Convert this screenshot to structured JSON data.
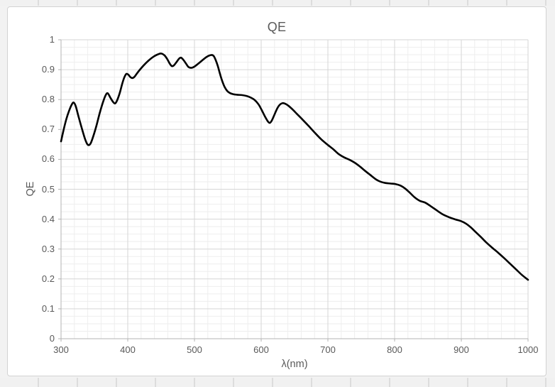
{
  "window": {
    "background_color": "#f2f2f2",
    "chart_background_color": "#ffffff",
    "chart_border_color": "#d2d2d2"
  },
  "chart_data": {
    "type": "line",
    "title": "QE",
    "xlabel": "λ(nm)",
    "ylabel": "QE",
    "xlim": [
      300,
      1000
    ],
    "ylim": [
      0,
      1
    ],
    "x_major_step": 100,
    "x_minor_step": 20,
    "y_major_step": 0.1,
    "y_minor_step": 0.025,
    "x_ticks": [
      "300",
      "400",
      "500",
      "600",
      "700",
      "800",
      "900",
      "1000"
    ],
    "y_ticks": [
      "0",
      "0.1",
      "0.2",
      "0.3",
      "0.4",
      "0.5",
      "0.6",
      "0.7",
      "0.8",
      "0.9",
      "1"
    ],
    "grid": "major-and-minor",
    "legend": "none",
    "colors": {
      "line": "#000000",
      "major_grid": "#d6d6d6",
      "minor_grid": "#eeeeee",
      "axis": "#b3b3b3",
      "text": "#595959"
    },
    "series": [
      {
        "name": "QE",
        "points": [
          [
            300,
            0.66
          ],
          [
            304,
            0.7
          ],
          [
            308,
            0.735
          ],
          [
            312,
            0.762
          ],
          [
            316,
            0.783
          ],
          [
            319,
            0.79
          ],
          [
            322,
            0.778
          ],
          [
            326,
            0.745
          ],
          [
            331,
            0.705
          ],
          [
            336,
            0.668
          ],
          [
            340,
            0.649
          ],
          [
            344,
            0.652
          ],
          [
            348,
            0.675
          ],
          [
            353,
            0.712
          ],
          [
            358,
            0.755
          ],
          [
            363,
            0.792
          ],
          [
            367,
            0.815
          ],
          [
            370,
            0.821
          ],
          [
            374,
            0.806
          ],
          [
            378,
            0.792
          ],
          [
            381,
            0.787
          ],
          [
            384,
            0.797
          ],
          [
            388,
            0.822
          ],
          [
            392,
            0.855
          ],
          [
            395,
            0.875
          ],
          [
            398,
            0.886
          ],
          [
            401,
            0.883
          ],
          [
            404,
            0.875
          ],
          [
            407,
            0.872
          ],
          [
            410,
            0.876
          ],
          [
            414,
            0.888
          ],
          [
            419,
            0.902
          ],
          [
            425,
            0.917
          ],
          [
            432,
            0.932
          ],
          [
            439,
            0.944
          ],
          [
            445,
            0.951
          ],
          [
            450,
            0.954
          ],
          [
            455,
            0.948
          ],
          [
            459,
            0.936
          ],
          [
            463,
            0.92
          ],
          [
            466,
            0.912
          ],
          [
            469,
            0.914
          ],
          [
            473,
            0.925
          ],
          [
            477,
            0.937
          ],
          [
            480,
            0.94
          ],
          [
            484,
            0.931
          ],
          [
            488,
            0.918
          ],
          [
            491,
            0.909
          ],
          [
            495,
            0.906
          ],
          [
            499,
            0.909
          ],
          [
            504,
            0.917
          ],
          [
            510,
            0.928
          ],
          [
            516,
            0.939
          ],
          [
            521,
            0.946
          ],
          [
            526,
            0.949
          ],
          [
            529,
            0.945
          ],
          [
            532,
            0.931
          ],
          [
            535,
            0.912
          ],
          [
            538,
            0.888
          ],
          [
            541,
            0.866
          ],
          [
            545,
            0.843
          ],
          [
            549,
            0.829
          ],
          [
            553,
            0.822
          ],
          [
            558,
            0.818
          ],
          [
            564,
            0.816
          ],
          [
            571,
            0.815
          ],
          [
            578,
            0.812
          ],
          [
            584,
            0.807
          ],
          [
            590,
            0.799
          ],
          [
            596,
            0.784
          ],
          [
            601,
            0.764
          ],
          [
            606,
            0.742
          ],
          [
            610,
            0.727
          ],
          [
            613,
            0.722
          ],
          [
            616,
            0.73
          ],
          [
            620,
            0.75
          ],
          [
            624,
            0.77
          ],
          [
            628,
            0.783
          ],
          [
            632,
            0.788
          ],
          [
            636,
            0.786
          ],
          [
            641,
            0.779
          ],
          [
            647,
            0.767
          ],
          [
            654,
            0.751
          ],
          [
            662,
            0.733
          ],
          [
            671,
            0.712
          ],
          [
            680,
            0.69
          ],
          [
            690,
            0.667
          ],
          [
            700,
            0.648
          ],
          [
            708,
            0.634
          ],
          [
            716,
            0.618
          ],
          [
            724,
            0.607
          ],
          [
            732,
            0.599
          ],
          [
            740,
            0.589
          ],
          [
            748,
            0.576
          ],
          [
            756,
            0.561
          ],
          [
            764,
            0.547
          ],
          [
            772,
            0.533
          ],
          [
            779,
            0.525
          ],
          [
            786,
            0.521
          ],
          [
            794,
            0.519
          ],
          [
            802,
            0.517
          ],
          [
            809,
            0.512
          ],
          [
            816,
            0.502
          ],
          [
            823,
            0.488
          ],
          [
            830,
            0.473
          ],
          [
            838,
            0.461
          ],
          [
            846,
            0.455
          ],
          [
            855,
            0.442
          ],
          [
            864,
            0.428
          ],
          [
            873,
            0.415
          ],
          [
            882,
            0.406
          ],
          [
            891,
            0.399
          ],
          [
            900,
            0.393
          ],
          [
            907,
            0.385
          ],
          [
            914,
            0.373
          ],
          [
            921,
            0.358
          ],
          [
            929,
            0.341
          ],
          [
            937,
            0.323
          ],
          [
            946,
            0.305
          ],
          [
            955,
            0.288
          ],
          [
            964,
            0.27
          ],
          [
            973,
            0.251
          ],
          [
            982,
            0.232
          ],
          [
            991,
            0.213
          ],
          [
            1000,
            0.197
          ]
        ]
      }
    ]
  }
}
